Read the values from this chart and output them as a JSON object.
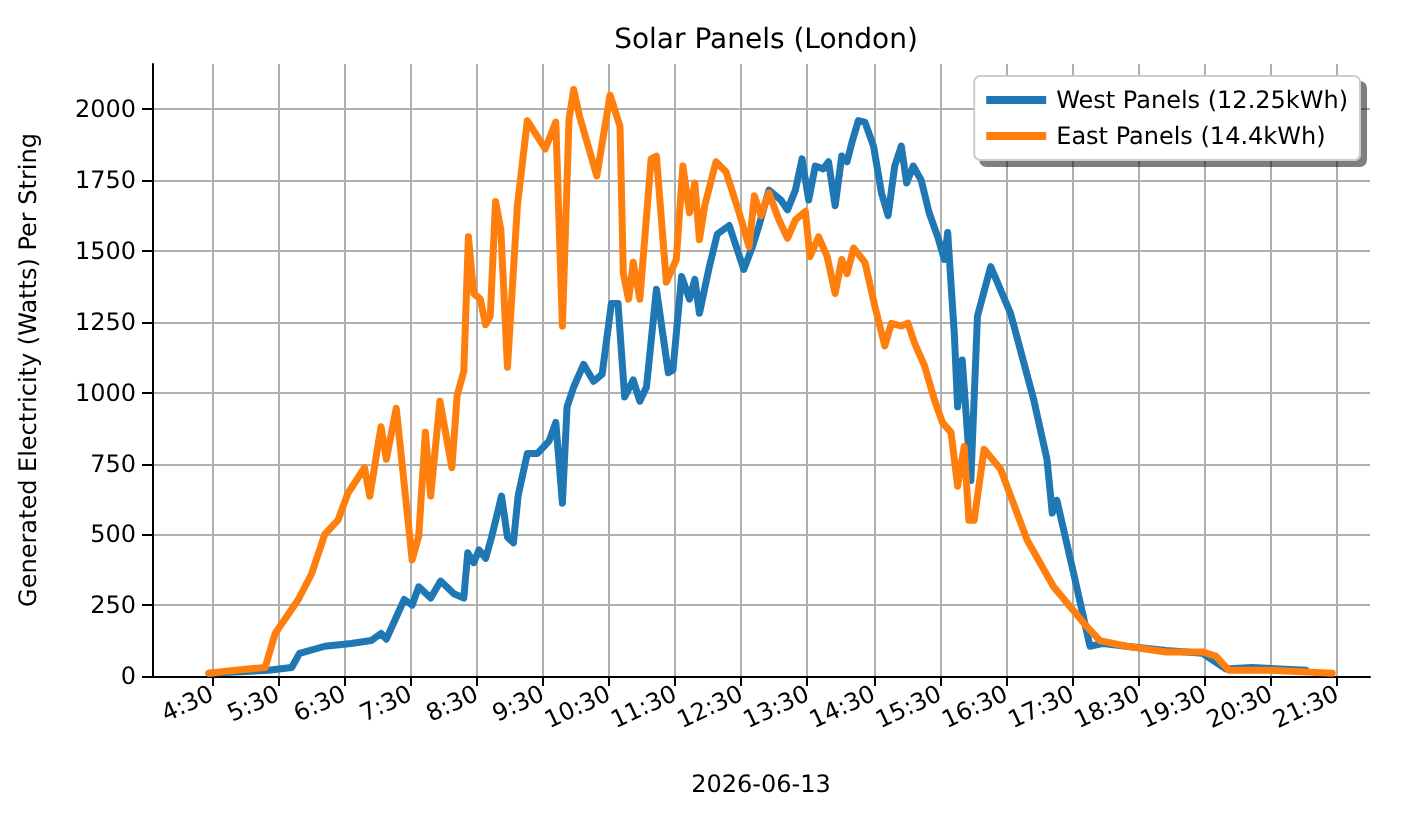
{
  "chart_data": {
    "type": "line",
    "title": "Solar Panels (London)",
    "xlabel": "2026-06-13",
    "ylabel": "Generated Electricity (Watts) Per String",
    "xlim": [
      3.6,
      22.0
    ],
    "ylim": [
      0,
      2160
    ],
    "xticks": [
      {
        "value": 4.5,
        "label": "4:30"
      },
      {
        "value": 5.5,
        "label": "5:30"
      },
      {
        "value": 6.5,
        "label": "6:30"
      },
      {
        "value": 7.5,
        "label": "7:30"
      },
      {
        "value": 8.5,
        "label": "8:30"
      },
      {
        "value": 9.5,
        "label": "9:30"
      },
      {
        "value": 10.5,
        "label": "10:30"
      },
      {
        "value": 11.5,
        "label": "11:30"
      },
      {
        "value": 12.5,
        "label": "12:30"
      },
      {
        "value": 13.5,
        "label": "13:30"
      },
      {
        "value": 14.5,
        "label": "14:30"
      },
      {
        "value": 15.5,
        "label": "15:30"
      },
      {
        "value": 16.5,
        "label": "16:30"
      },
      {
        "value": 17.5,
        "label": "17:30"
      },
      {
        "value": 18.5,
        "label": "18:30"
      },
      {
        "value": 19.5,
        "label": "19:30"
      },
      {
        "value": 20.5,
        "label": "20:30"
      },
      {
        "value": 21.5,
        "label": "21:30"
      }
    ],
    "yticks": [
      0,
      250,
      500,
      750,
      1000,
      1250,
      1500,
      1750,
      2000
    ],
    "grid": true,
    "legend": "top right",
    "marker": "none",
    "line_style": "solid",
    "series": [
      {
        "name": "West Panels (12.25kWh)",
        "color": "#1f77b4",
        "x": [
          4.46,
          5.36,
          5.71,
          5.83,
          6.21,
          6.61,
          6.91,
          7.06,
          7.14,
          7.41,
          7.53,
          7.63,
          7.81,
          7.96,
          8.16,
          8.31,
          8.37,
          8.46,
          8.54,
          8.64,
          8.73,
          8.88,
          8.97,
          9.06,
          9.13,
          9.27,
          9.42,
          9.6,
          9.7,
          9.8,
          9.87,
          9.97,
          10.12,
          10.27,
          10.4,
          10.54,
          10.64,
          10.74,
          10.87,
          10.97,
          11.07,
          11.22,
          11.4,
          11.47,
          11.6,
          11.72,
          11.8,
          11.87,
          12.02,
          12.14,
          12.32,
          12.54,
          12.67,
          12.77,
          12.92,
          13.1,
          13.2,
          13.32,
          13.42,
          13.52,
          13.62,
          13.74,
          13.82,
          13.92,
          14.02,
          14.1,
          14.17,
          14.27,
          14.37,
          14.5,
          14.62,
          14.72,
          14.82,
          14.92,
          15.0,
          15.1,
          15.22,
          15.34,
          15.47,
          15.57,
          15.62,
          15.72,
          15.77,
          15.84,
          15.97,
          16.07,
          16.27,
          16.57,
          16.92,
          17.12,
          17.2,
          17.27,
          17.52,
          17.77,
          17.97,
          18.32,
          18.92,
          19.47,
          19.82,
          20.22,
          21.03
        ],
        "values": [
          10,
          20,
          30,
          80,
          105,
          115,
          125,
          150,
          130,
          270,
          250,
          315,
          275,
          335,
          290,
          275,
          435,
          400,
          445,
          415,
          490,
          635,
          490,
          470,
          635,
          785,
          785,
          830,
          895,
          610,
          950,
          1020,
          1100,
          1040,
          1065,
          1315,
          1315,
          985,
          1045,
          970,
          1020,
          1365,
          1070,
          1080,
          1410,
          1330,
          1400,
          1280,
          1445,
          1560,
          1590,
          1435,
          1515,
          1590,
          1715,
          1680,
          1645,
          1715,
          1825,
          1680,
          1800,
          1790,
          1815,
          1660,
          1835,
          1815,
          1880,
          1960,
          1955,
          1870,
          1705,
          1625,
          1800,
          1870,
          1740,
          1800,
          1750,
          1635,
          1550,
          1470,
          1565,
          1210,
          950,
          1115,
          690,
          1270,
          1445,
          1280,
          975,
          765,
          575,
          620,
          365,
          105,
          115,
          105,
          90,
          80,
          25,
          30,
          20
        ]
      },
      {
        "name": "East Panels (14.4kWh)",
        "color": "#ff7f0e",
        "x": [
          4.46,
          4.86,
          5.31,
          5.46,
          5.81,
          6.01,
          6.21,
          6.41,
          6.56,
          6.81,
          6.89,
          7.06,
          7.14,
          7.29,
          7.53,
          7.63,
          7.73,
          7.81,
          7.95,
          8.13,
          8.21,
          8.31,
          8.38,
          8.46,
          8.56,
          8.64,
          8.71,
          8.79,
          8.87,
          8.97,
          9.12,
          9.27,
          9.54,
          9.7,
          9.8,
          9.9,
          9.97,
          10.06,
          10.32,
          10.52,
          10.67,
          10.72,
          10.8,
          10.87,
          10.97,
          11.14,
          11.22,
          11.37,
          11.52,
          11.62,
          11.72,
          11.8,
          11.87,
          11.95,
          12.12,
          12.27,
          12.47,
          12.62,
          12.7,
          12.8,
          12.92,
          13.07,
          13.2,
          13.32,
          13.47,
          13.54,
          13.67,
          13.8,
          13.92,
          14.02,
          14.1,
          14.2,
          14.37,
          14.52,
          14.67,
          14.77,
          14.92,
          15.02,
          15.12,
          15.27,
          15.42,
          15.54,
          15.67,
          15.77,
          15.87,
          15.94,
          16.02,
          16.17,
          16.42,
          16.82,
          17.22,
          17.72,
          17.92,
          18.32,
          18.92,
          19.47,
          19.67,
          19.87,
          20.52,
          21.43
        ],
        "values": [
          10,
          20,
          30,
          150,
          270,
          360,
          500,
          550,
          645,
          735,
          635,
          880,
          765,
          945,
          410,
          495,
          860,
          635,
          970,
          735,
          990,
          1075,
          1550,
          1350,
          1330,
          1240,
          1270,
          1675,
          1575,
          1090,
          1660,
          1960,
          1860,
          1955,
          1235,
          1965,
          2070,
          1975,
          1765,
          2050,
          1940,
          1420,
          1330,
          1460,
          1330,
          1825,
          1835,
          1390,
          1470,
          1800,
          1635,
          1740,
          1540,
          1660,
          1815,
          1780,
          1635,
          1515,
          1695,
          1625,
          1705,
          1610,
          1545,
          1610,
          1640,
          1480,
          1550,
          1480,
          1350,
          1470,
          1420,
          1510,
          1460,
          1305,
          1165,
          1245,
          1235,
          1245,
          1175,
          1095,
          975,
          895,
          860,
          670,
          810,
          550,
          550,
          800,
          730,
          480,
          315,
          175,
          125,
          105,
          85,
          85,
          70,
          20,
          20,
          10
        ]
      }
    ]
  }
}
